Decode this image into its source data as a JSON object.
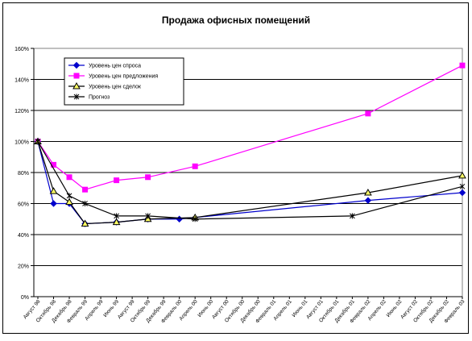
{
  "chart_data": {
    "type": "line",
    "title": "Продажа офисных помещений",
    "xlabel": "",
    "ylabel": "",
    "ylim": [
      0,
      160
    ],
    "y_tick_labels": [
      "0%",
      "20%",
      "40%",
      "60%",
      "80%",
      "100%",
      "120%",
      "140%",
      "160%"
    ],
    "grid": true,
    "legend_position": "top-left",
    "categories": [
      "Август 98",
      "Октябрь 98",
      "Декабрь 98",
      "Февраль 99",
      "Апрель 99",
      "Июнь 99",
      "Август 99",
      "Октябрь 99",
      "Декабрь 99",
      "Февраль 00",
      "Апрель 00",
      "Июнь 00",
      "Август 00",
      "Октябрь 00",
      "Декабрь 00",
      "Февраль 01",
      "Апрель 01",
      "Июнь 01",
      "Август 01",
      "Октябрь 01",
      "Декабрь 01",
      "Февраль 02",
      "Апрель 02",
      "Июнь 02",
      "Август 02",
      "Октябрь 02",
      "Декабрь 02",
      "Февраль 03"
    ],
    "series": [
      {
        "name": "Уровень цен спроса",
        "color": "#0000CC",
        "marker": "diamond",
        "points": [
          [
            0,
            100
          ],
          [
            1,
            60
          ],
          [
            2,
            60
          ],
          [
            3,
            47
          ],
          [
            5,
            48
          ],
          [
            7,
            50
          ],
          [
            9,
            50
          ],
          [
            21,
            62
          ],
          [
            27,
            67
          ]
        ]
      },
      {
        "name": "Уровень цен предложения",
        "color": "#FF00FF",
        "marker": "square",
        "points": [
          [
            0,
            100
          ],
          [
            1,
            85
          ],
          [
            2,
            77
          ],
          [
            3,
            69
          ],
          [
            5,
            75
          ],
          [
            7,
            77
          ],
          [
            10,
            84
          ],
          [
            21,
            118
          ],
          [
            27,
            149
          ]
        ]
      },
      {
        "name": "Уровень цен сделок",
        "color": "#000000",
        "marker": "triangle",
        "marker_fill": "#FFFF66",
        "points": [
          [
            0,
            100
          ],
          [
            1,
            68
          ],
          [
            2,
            61
          ],
          [
            3,
            47
          ],
          [
            5,
            48
          ],
          [
            7,
            50
          ],
          [
            10,
            51
          ],
          [
            21,
            67
          ],
          [
            27,
            78
          ]
        ]
      },
      {
        "name": "Прогноз",
        "color": "#000000",
        "marker": "star",
        "points": [
          [
            0,
            100
          ],
          [
            2,
            65
          ],
          [
            3,
            60
          ],
          [
            5,
            52
          ],
          [
            7,
            52
          ],
          [
            10,
            50
          ],
          [
            20,
            52
          ],
          [
            27,
            71
          ]
        ]
      }
    ]
  }
}
